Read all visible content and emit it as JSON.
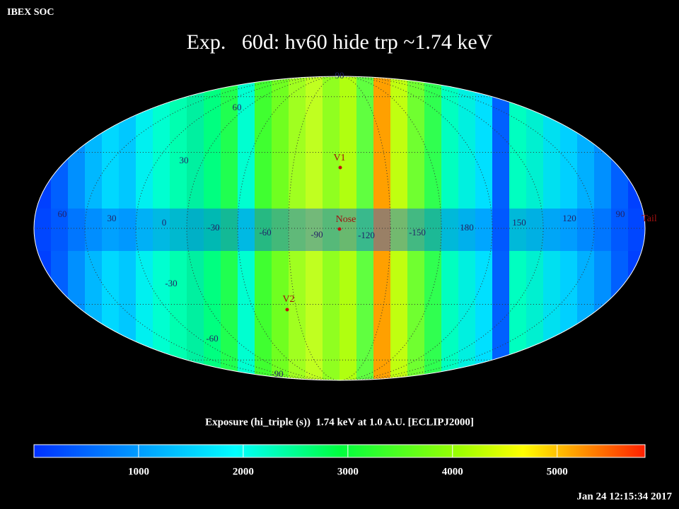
{
  "header": {
    "org": "IBEX SOC",
    "title": "Exp.   60d: hv60 hide trp ~1.74 keV",
    "timestamp": "Jan 24 12:15:34 2017"
  },
  "map": {
    "lat_labels": [
      "90",
      "60",
      "30",
      "-30",
      "-60",
      "-90"
    ],
    "lon_labels": [
      "60",
      "30",
      "0",
      "-30",
      "-60",
      "-90",
      "-120",
      "-150",
      "180",
      "150",
      "120",
      "90"
    ],
    "markers": [
      "V1",
      "Nose",
      "V2",
      "Tail"
    ]
  },
  "colorbar": {
    "title": "Exposure (hi_triple (s))  1.74 keV at 1.0 A.U. [ECLIPJ2000]",
    "range": [
      0,
      5840
    ],
    "ticks": [
      1000,
      2000,
      3000,
      4000,
      5000
    ]
  }
}
